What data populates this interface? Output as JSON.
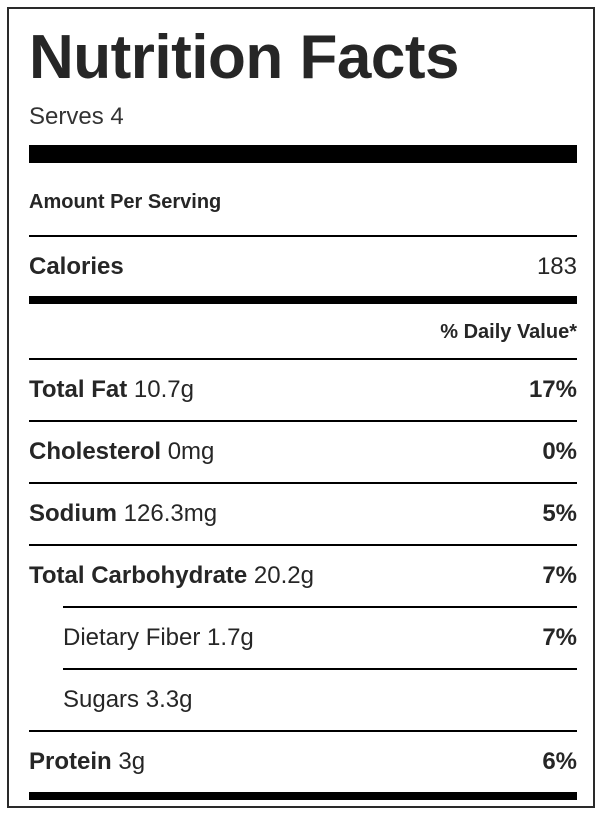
{
  "label": {
    "title": "Nutrition Facts",
    "serves": "Serves 4",
    "amount_per_serving": "Amount Per Serving",
    "calories": {
      "label": "Calories",
      "value": "183"
    },
    "daily_value_header": "% Daily Value*",
    "nutrients": [
      {
        "name": "Total Fat",
        "amount": "10.7g",
        "dv": "17%"
      },
      {
        "name": "Cholesterol",
        "amount": "0mg",
        "dv": "0%"
      },
      {
        "name": "Sodium",
        "amount": "126.3mg",
        "dv": "5%"
      },
      {
        "name": "Total Carbohydrate",
        "amount": "20.2g",
        "dv": "7%"
      },
      {
        "name": "Dietary Fiber",
        "amount": "1.7g",
        "dv": "7%"
      },
      {
        "name": "Sugars",
        "amount": "3.3g",
        "dv": ""
      },
      {
        "name": "Protein",
        "amount": "3g",
        "dv": "6%"
      }
    ]
  }
}
